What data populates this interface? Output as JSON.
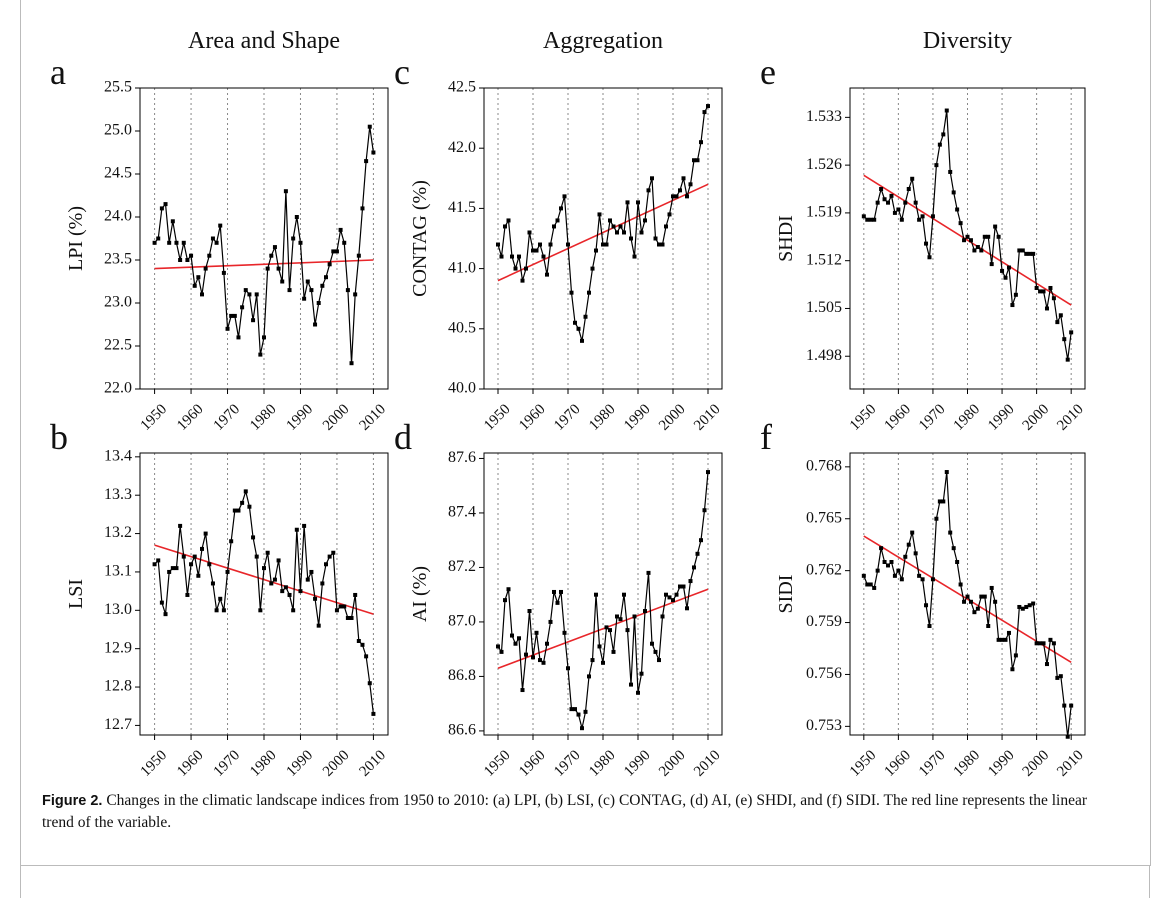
{
  "chart_data": [
    {
      "type": "line",
      "title": "Area and Shape",
      "panel_label": "a",
      "ylabel": "LPI (%)",
      "x": [
        1950,
        1951,
        1952,
        1953,
        1954,
        1955,
        1956,
        1957,
        1958,
        1959,
        1960,
        1961,
        1962,
        1963,
        1964,
        1965,
        1966,
        1967,
        1968,
        1969,
        1970,
        1971,
        1972,
        1973,
        1974,
        1975,
        1976,
        1977,
        1978,
        1979,
        1980,
        1981,
        1982,
        1983,
        1984,
        1985,
        1986,
        1987,
        1988,
        1989,
        1990,
        1991,
        1992,
        1993,
        1994,
        1995,
        1996,
        1997,
        1998,
        1999,
        2000,
        2001,
        2002,
        2003,
        2004,
        2005,
        2006,
        2007,
        2008,
        2009,
        2010
      ],
      "series": [
        {
          "color": "#000000",
          "values": [
            23.7,
            23.75,
            24.1,
            24.15,
            23.7,
            23.95,
            23.7,
            23.5,
            23.7,
            23.5,
            23.55,
            23.2,
            23.3,
            23.1,
            23.4,
            23.55,
            23.75,
            23.7,
            23.9,
            23.35,
            22.7,
            22.85,
            22.85,
            22.6,
            22.95,
            23.15,
            23.1,
            22.8,
            23.1,
            22.4,
            22.6,
            23.4,
            23.55,
            23.65,
            23.4,
            23.25,
            24.3,
            23.15,
            23.75,
            24.0,
            23.7,
            23.05,
            23.25,
            23.15,
            22.75,
            23.0,
            23.2,
            23.3,
            23.45,
            23.6,
            23.6,
            23.85,
            23.7,
            23.15,
            22.3,
            23.1,
            23.55,
            24.1,
            24.65,
            25.05,
            24.75
          ]
        }
      ],
      "trend": {
        "color": "#e8262a",
        "x": [
          1950,
          2010
        ],
        "values": [
          23.4,
          23.5
        ]
      },
      "xlim": [
        1946,
        2014
      ],
      "xticks": [
        1950,
        1960,
        1970,
        1980,
        1990,
        2000,
        2010
      ],
      "ylim": [
        22.0,
        25.5
      ],
      "yticks": [
        {
          "value": 22,
          "label": "22.0"
        },
        22.5,
        {
          "value": 23,
          "label": "23.0"
        },
        23.5,
        {
          "value": 24,
          "label": "24.0"
        },
        24.5,
        {
          "value": 25,
          "label": "25.0"
        },
        25.5
      ],
      "xgrid": true
    },
    {
      "type": "line",
      "title": "Aggregation",
      "panel_label": "c",
      "ylabel": "CONTAG (%)",
      "x": [
        1950,
        1951,
        1952,
        1953,
        1954,
        1955,
        1956,
        1957,
        1958,
        1959,
        1960,
        1961,
        1962,
        1963,
        1964,
        1965,
        1966,
        1967,
        1968,
        1969,
        1970,
        1971,
        1972,
        1973,
        1974,
        1975,
        1976,
        1977,
        1978,
        1979,
        1980,
        1981,
        1982,
        1983,
        1984,
        1985,
        1986,
        1987,
        1988,
        1989,
        1990,
        1991,
        1992,
        1993,
        1994,
        1995,
        1996,
        1997,
        1998,
        1999,
        2000,
        2001,
        2002,
        2003,
        2004,
        2005,
        2006,
        2007,
        2008,
        2009,
        2010
      ],
      "series": [
        {
          "color": "#000000",
          "values": [
            41.2,
            41.1,
            41.35,
            41.4,
            41.1,
            41.0,
            41.1,
            40.9,
            41.0,
            41.3,
            41.15,
            41.15,
            41.2,
            41.1,
            40.95,
            41.2,
            41.35,
            41.4,
            41.5,
            41.6,
            41.2,
            40.8,
            40.55,
            40.5,
            40.4,
            40.6,
            40.8,
            41.0,
            41.15,
            41.45,
            41.2,
            41.2,
            41.4,
            41.35,
            41.3,
            41.35,
            41.3,
            41.55,
            41.25,
            41.1,
            41.55,
            41.3,
            41.4,
            41.65,
            41.75,
            41.25,
            41.2,
            41.2,
            41.35,
            41.45,
            41.6,
            41.6,
            41.65,
            41.75,
            41.6,
            41.7,
            41.9,
            41.9,
            42.05,
            42.3,
            42.35
          ]
        }
      ],
      "trend": {
        "color": "#e8262a",
        "x": [
          1950,
          2010
        ],
        "values": [
          40.9,
          41.7
        ]
      },
      "xlim": [
        1946,
        2014
      ],
      "xticks": [
        1950,
        1960,
        1970,
        1980,
        1990,
        2000,
        2010
      ],
      "ylim": [
        40.0,
        42.5
      ],
      "yticks": [
        {
          "value": 40,
          "label": "40.0"
        },
        40.5,
        {
          "value": 41,
          "label": "41.0"
        },
        41.5,
        {
          "value": 42,
          "label": "42.0"
        },
        42.5
      ],
      "xgrid": true
    },
    {
      "type": "line",
      "title": "Diversity",
      "panel_label": "e",
      "ylabel": "SHDI",
      "x": [
        1950,
        1951,
        1952,
        1953,
        1954,
        1955,
        1956,
        1957,
        1958,
        1959,
        1960,
        1961,
        1962,
        1963,
        1964,
        1965,
        1966,
        1967,
        1968,
        1969,
        1970,
        1971,
        1972,
        1973,
        1974,
        1975,
        1976,
        1977,
        1978,
        1979,
        1980,
        1981,
        1982,
        1983,
        1984,
        1985,
        1986,
        1987,
        1988,
        1989,
        1990,
        1991,
        1992,
        1993,
        1994,
        1995,
        1996,
        1997,
        1998,
        1999,
        2000,
        2001,
        2002,
        2003,
        2004,
        2005,
        2006,
        2007,
        2008,
        2009,
        2010
      ],
      "series": [
        {
          "color": "#000000",
          "values": [
            1.5185,
            1.518,
            1.518,
            1.518,
            1.5205,
            1.5225,
            1.521,
            1.5205,
            1.5215,
            1.519,
            1.5195,
            1.518,
            1.5205,
            1.5225,
            1.524,
            1.5205,
            1.518,
            1.5185,
            1.5145,
            1.5125,
            1.5185,
            1.526,
            1.529,
            1.5305,
            1.534,
            1.525,
            1.522,
            1.5195,
            1.5175,
            1.515,
            1.5155,
            1.515,
            1.5135,
            1.514,
            1.5135,
            1.5155,
            1.5155,
            1.5115,
            1.517,
            1.5155,
            1.5105,
            1.5095,
            1.511,
            1.5055,
            1.507,
            1.5135,
            1.5135,
            1.513,
            1.513,
            1.513,
            1.508,
            1.5075,
            1.5075,
            1.505,
            1.508,
            1.5065,
            1.503,
            1.504,
            1.5005,
            1.4975,
            1.5015
          ]
        }
      ],
      "trend": {
        "color": "#e8262a",
        "x": [
          1950,
          2010
        ],
        "values": [
          1.5245,
          1.5055
        ]
      },
      "xlim": [
        1946,
        2014
      ],
      "xticks": [
        1950,
        1960,
        1970,
        1980,
        1990,
        2000,
        2010
      ],
      "ylim": [
        1.4932,
        1.5373
      ],
      "yticks": [
        1.498,
        1.505,
        1.512,
        1.519,
        1.526,
        1.533
      ],
      "xgrid": true
    },
    {
      "type": "line",
      "panel_label": "b",
      "ylabel": "LSI",
      "x": [
        1950,
        1951,
        1952,
        1953,
        1954,
        1955,
        1956,
        1957,
        1958,
        1959,
        1960,
        1961,
        1962,
        1963,
        1964,
        1965,
        1966,
        1967,
        1968,
        1969,
        1970,
        1971,
        1972,
        1973,
        1974,
        1975,
        1976,
        1977,
        1978,
        1979,
        1980,
        1981,
        1982,
        1983,
        1984,
        1985,
        1986,
        1987,
        1988,
        1989,
        1990,
        1991,
        1992,
        1993,
        1994,
        1995,
        1996,
        1997,
        1998,
        1999,
        2000,
        2001,
        2002,
        2003,
        2004,
        2005,
        2006,
        2007,
        2008,
        2009,
        2010
      ],
      "series": [
        {
          "color": "#000000",
          "values": [
            13.12,
            13.13,
            13.02,
            12.99,
            13.1,
            13.11,
            13.11,
            13.22,
            13.14,
            13.04,
            13.12,
            13.14,
            13.09,
            13.16,
            13.2,
            13.12,
            13.07,
            13.0,
            13.03,
            13.0,
            13.1,
            13.18,
            13.26,
            13.26,
            13.28,
            13.31,
            13.27,
            13.19,
            13.14,
            13.0,
            13.11,
            13.15,
            13.07,
            13.08,
            13.13,
            13.05,
            13.06,
            13.04,
            13.0,
            13.21,
            13.05,
            13.22,
            13.08,
            13.1,
            13.03,
            12.96,
            13.07,
            13.12,
            13.14,
            13.15,
            13.0,
            13.01,
            13.01,
            12.98,
            12.98,
            13.04,
            12.92,
            12.91,
            12.88,
            12.81,
            12.73
          ]
        }
      ],
      "trend": {
        "color": "#e8262a",
        "x": [
          1950,
          2010
        ],
        "values": [
          13.17,
          12.99
        ]
      },
      "xlim": [
        1946,
        2014
      ],
      "xticks": [
        1950,
        1960,
        1970,
        1980,
        1990,
        2000,
        2010
      ],
      "ylim": [
        12.675,
        13.41
      ],
      "yticks": [
        12.7,
        12.8,
        12.9,
        {
          "value": 13,
          "label": "13.0"
        },
        13.1,
        13.2,
        13.3,
        13.4
      ],
      "xgrid": true
    },
    {
      "type": "line",
      "panel_label": "d",
      "ylabel": "AI (%)",
      "x": [
        1950,
        1951,
        1952,
        1953,
        1954,
        1955,
        1956,
        1957,
        1958,
        1959,
        1960,
        1961,
        1962,
        1963,
        1964,
        1965,
        1966,
        1967,
        1968,
        1969,
        1970,
        1971,
        1972,
        1973,
        1974,
        1975,
        1976,
        1977,
        1978,
        1979,
        1980,
        1981,
        1982,
        1983,
        1984,
        1985,
        1986,
        1987,
        1988,
        1989,
        1990,
        1991,
        1992,
        1993,
        1994,
        1995,
        1996,
        1997,
        1998,
        1999,
        2000,
        2001,
        2002,
        2003,
        2004,
        2005,
        2006,
        2007,
        2008,
        2009,
        2010
      ],
      "series": [
        {
          "color": "#000000",
          "values": [
            86.91,
            86.89,
            87.08,
            87.12,
            86.95,
            86.92,
            86.94,
            86.75,
            86.88,
            87.04,
            86.87,
            86.96,
            86.86,
            86.85,
            86.92,
            87.0,
            87.11,
            87.07,
            87.11,
            86.96,
            86.83,
            86.68,
            86.68,
            86.66,
            86.61,
            86.67,
            86.8,
            86.86,
            87.1,
            86.91,
            86.85,
            86.98,
            86.97,
            86.89,
            87.02,
            87.01,
            87.1,
            86.97,
            86.77,
            87.02,
            86.74,
            86.81,
            87.04,
            87.18,
            86.92,
            86.89,
            86.86,
            87.02,
            87.1,
            87.09,
            87.08,
            87.1,
            87.13,
            87.13,
            87.05,
            87.15,
            87.2,
            87.25,
            87.3,
            87.41,
            87.55
          ]
        }
      ],
      "trend": {
        "color": "#e8262a",
        "x": [
          1950,
          2010
        ],
        "values": [
          86.83,
          87.12
        ]
      },
      "xlim": [
        1946,
        2014
      ],
      "xticks": [
        1950,
        1960,
        1970,
        1980,
        1990,
        2000,
        2010
      ],
      "ylim": [
        86.585,
        87.62
      ],
      "yticks": [
        86.6,
        86.8,
        {
          "value": 87,
          "label": "87.0"
        },
        87.2,
        87.4,
        87.6
      ],
      "xgrid": true
    },
    {
      "type": "line",
      "panel_label": "f",
      "ylabel": "SIDI",
      "x": [
        1950,
        1951,
        1952,
        1953,
        1954,
        1955,
        1956,
        1957,
        1958,
        1959,
        1960,
        1961,
        1962,
        1963,
        1964,
        1965,
        1966,
        1967,
        1968,
        1969,
        1970,
        1971,
        1972,
        1973,
        1974,
        1975,
        1976,
        1977,
        1978,
        1979,
        1980,
        1981,
        1982,
        1983,
        1984,
        1985,
        1986,
        1987,
        1988,
        1989,
        1990,
        1991,
        1992,
        1993,
        1994,
        1995,
        1996,
        1997,
        1998,
        1999,
        2000,
        2001,
        2002,
        2003,
        2004,
        2005,
        2006,
        2007,
        2008,
        2009,
        2010
      ],
      "series": [
        {
          "color": "#000000",
          "values": [
            0.7617,
            0.7612,
            0.7612,
            0.761,
            0.762,
            0.7633,
            0.7625,
            0.7623,
            0.7625,
            0.7617,
            0.762,
            0.7615,
            0.7628,
            0.7635,
            0.7642,
            0.763,
            0.7617,
            0.7615,
            0.76,
            0.7588,
            0.7615,
            0.765,
            0.766,
            0.766,
            0.7677,
            0.7642,
            0.7633,
            0.7625,
            0.7612,
            0.7602,
            0.7605,
            0.7602,
            0.7596,
            0.7598,
            0.7605,
            0.7605,
            0.7588,
            0.761,
            0.7602,
            0.758,
            0.758,
            0.758,
            0.7584,
            0.7563,
            0.7571,
            0.7599,
            0.7598,
            0.7599,
            0.76,
            0.7601,
            0.7578,
            0.7578,
            0.7578,
            0.7566,
            0.758,
            0.7578,
            0.7558,
            0.7559,
            0.7542,
            0.7524,
            0.7542
          ]
        }
      ],
      "trend": {
        "color": "#e8262a",
        "x": [
          1950,
          2010
        ],
        "values": [
          0.764,
          0.7567
        ]
      },
      "xlim": [
        1946,
        2014
      ],
      "xticks": [
        1950,
        1960,
        1970,
        1980,
        1990,
        2000,
        2010
      ],
      "ylim": [
        0.7525,
        0.7688
      ],
      "yticks": [
        0.753,
        0.756,
        0.759,
        0.762,
        0.765,
        0.768
      ],
      "xgrid": true
    }
  ],
  "caption": {
    "label": "Figure 2.",
    "text": "Changes in the climatic landscape indices from 1950 to 2010: (a) LPI, (b) LSI, (c) CONTAG, (d) AI, (e) SHDI, and (f) SIDI. The red line represents the linear trend of the variable."
  }
}
